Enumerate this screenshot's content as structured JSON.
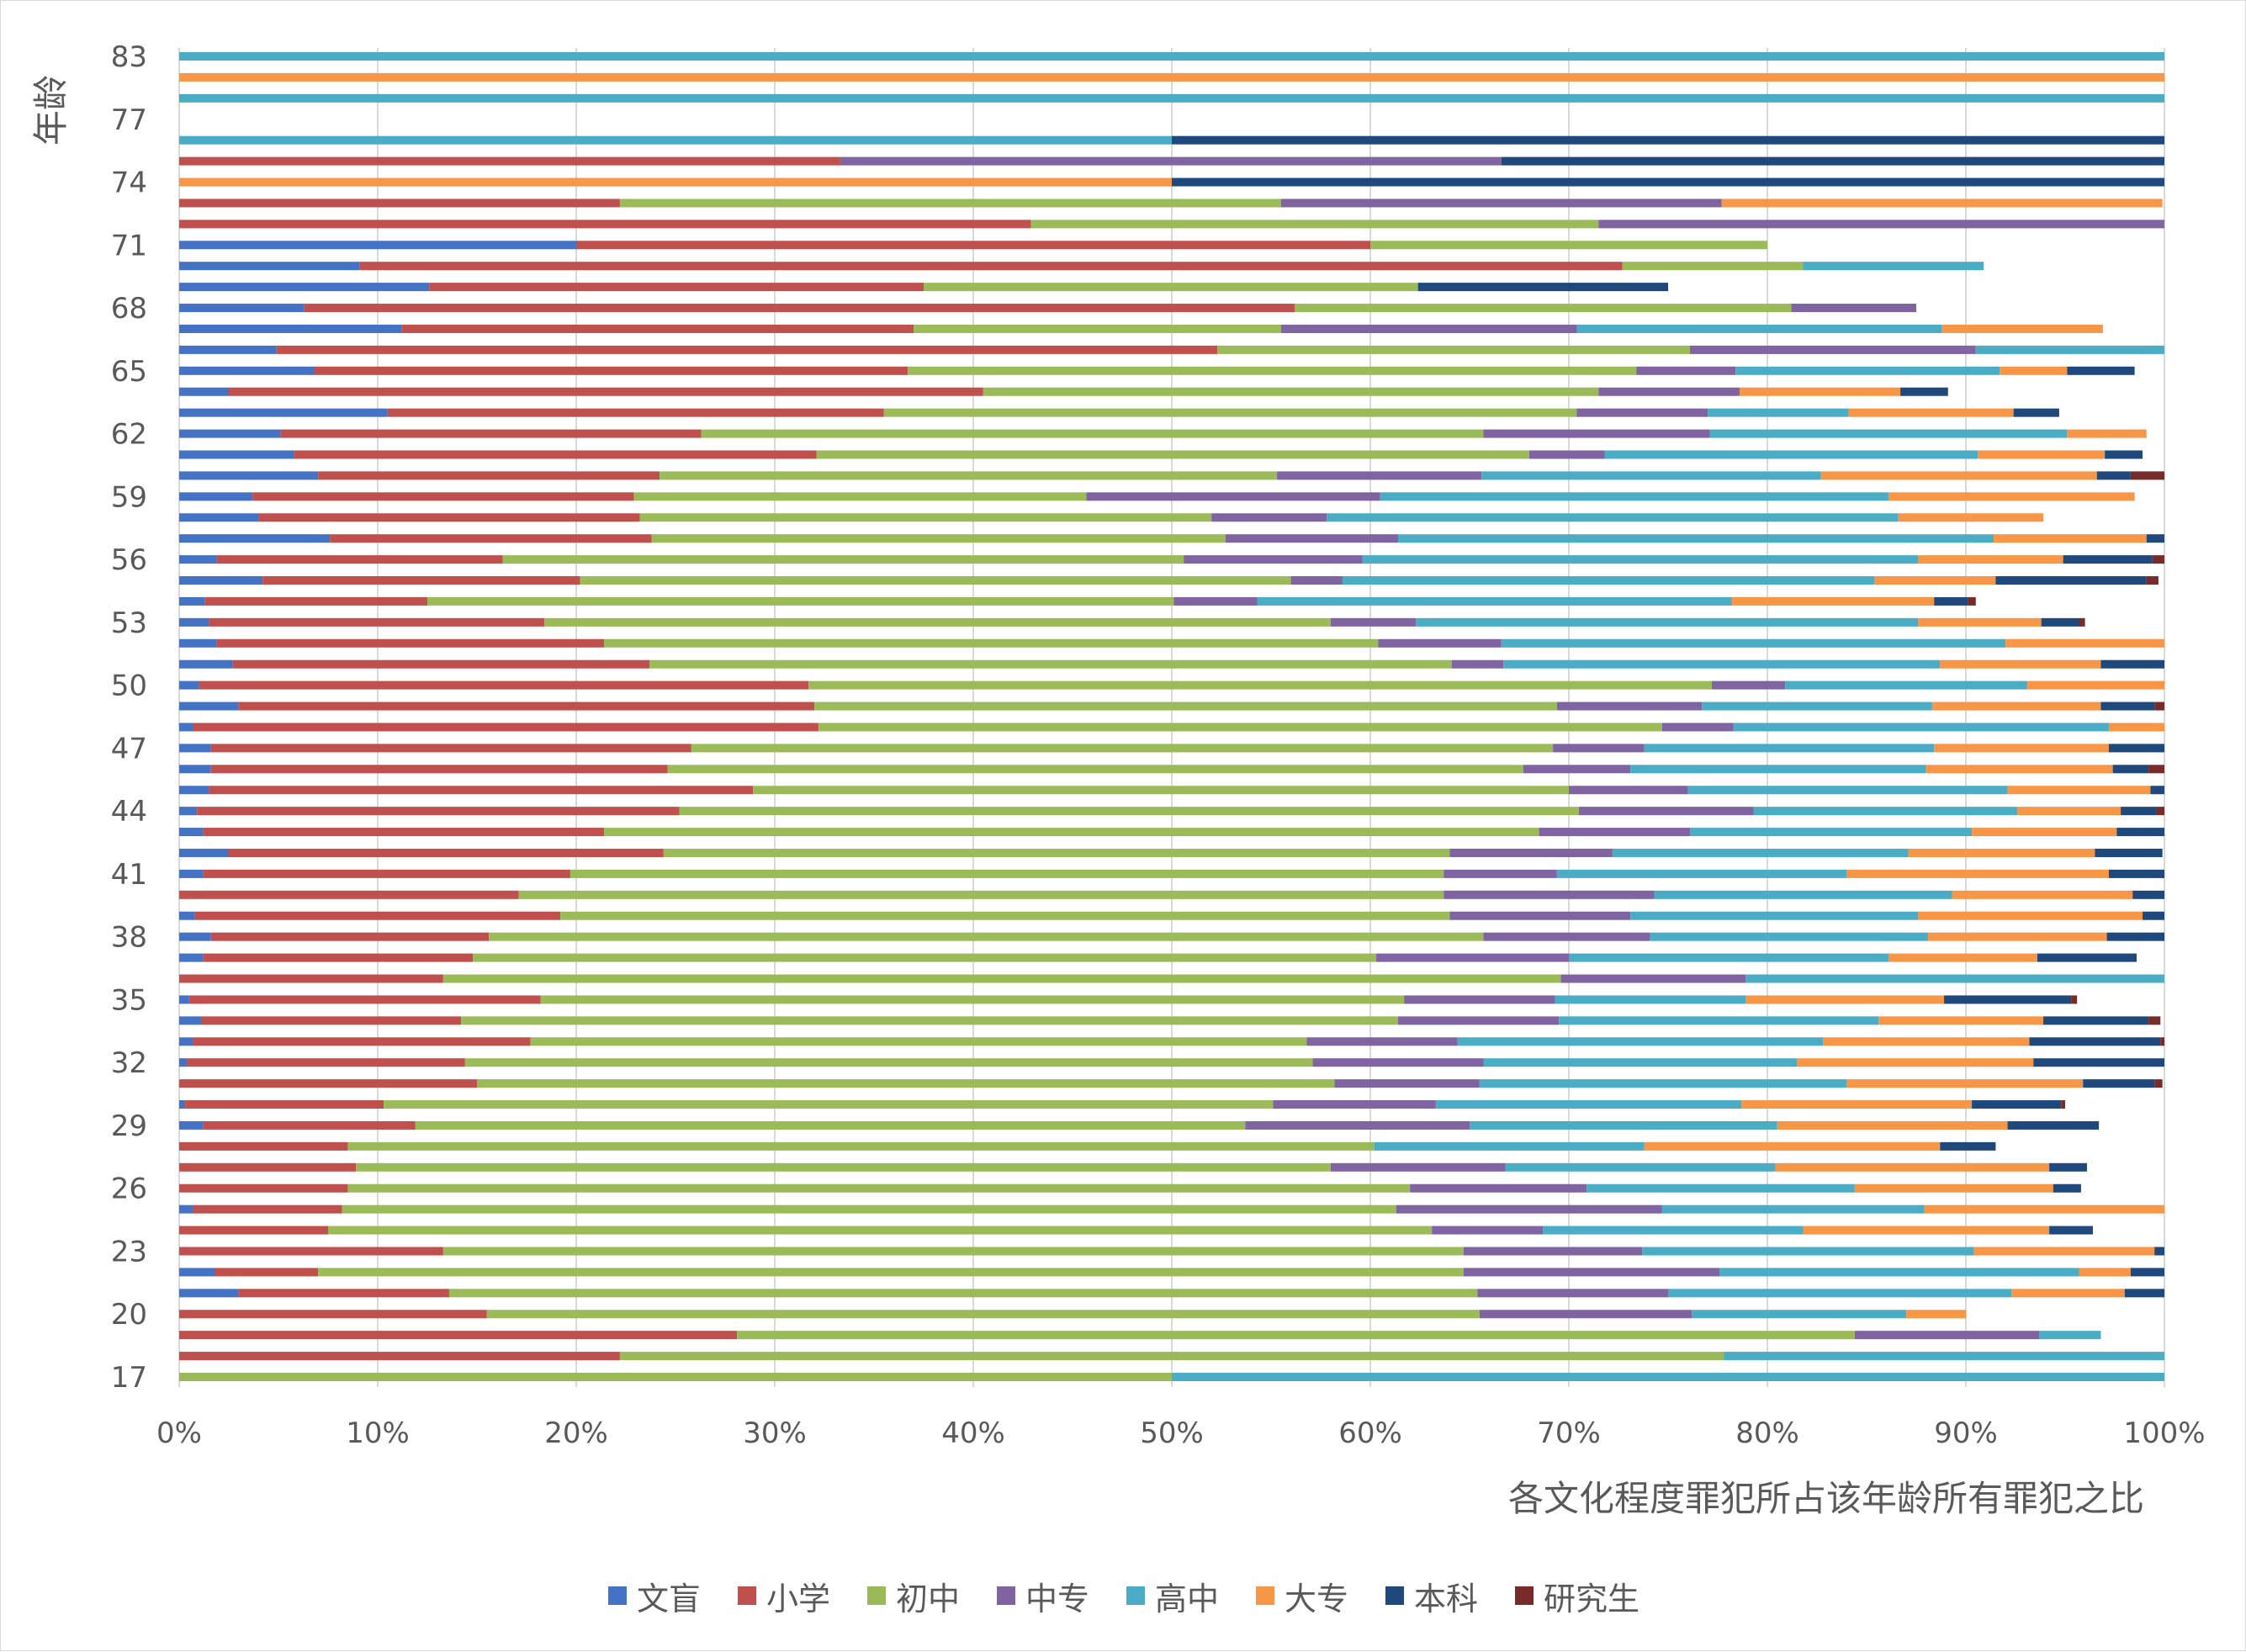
{
  "chart_data": {
    "type": "bar",
    "orientation": "horizontal",
    "stacked": "percent",
    "xlabel": "各文化程度罪犯所占该年龄所有罪犯之比",
    "ylabel": "年龄",
    "xlim": [
      0,
      100
    ],
    "xticks": [
      "0%",
      "10%",
      "20%",
      "30%",
      "40%",
      "50%",
      "60%",
      "70%",
      "80%",
      "90%",
      "100%"
    ],
    "ytick_labels": [
      "17",
      "20",
      "23",
      "26",
      "29",
      "32",
      "35",
      "38",
      "41",
      "44",
      "47",
      "50",
      "53",
      "56",
      "59",
      "62",
      "65",
      "68",
      "71",
      "74",
      "77",
      "83"
    ],
    "grid": "vertical",
    "legend_position": "bottom",
    "categories": [
      "17",
      "18",
      "19",
      "20",
      "21",
      "22",
      "23",
      "24",
      "25",
      "26",
      "27",
      "28",
      "29",
      "30",
      "31",
      "32",
      "33",
      "34",
      "35",
      "36",
      "37",
      "38",
      "39",
      "40",
      "41",
      "42",
      "43",
      "44",
      "45",
      "46",
      "47",
      "48",
      "49",
      "50",
      "51",
      "52",
      "53",
      "54",
      "55",
      "56",
      "57",
      "58",
      "59",
      "60",
      "61",
      "62",
      "63",
      "64",
      "65",
      "66",
      "67",
      "68",
      "69",
      "70",
      "71",
      "72",
      "73",
      "74",
      "75",
      "76",
      "77",
      "78",
      "79",
      "83"
    ],
    "series": [
      {
        "name": "文盲",
        "color": "#4472c4",
        "values": [
          0,
          0,
          0,
          0,
          3,
          1.8,
          0,
          0,
          0.7,
          0,
          0,
          0,
          1.2,
          0.3,
          0,
          0.4,
          0.7,
          1.1,
          0.5,
          0,
          1.2,
          1.6,
          0.8,
          0,
          1.2,
          2.5,
          1.2,
          0.9,
          1.5,
          1.6,
          1.6,
          0.7,
          3,
          1,
          2.7,
          1.9,
          1.5,
          1.3,
          4.2,
          1.9,
          7.6,
          4,
          3.7,
          7,
          5.8,
          5.1,
          10.5,
          2.5,
          6.8,
          4.9,
          11.2,
          6.3,
          12.6,
          9.1,
          20,
          0,
          0,
          0,
          0,
          0,
          0,
          0,
          0,
          0
        ]
      },
      {
        "name": "小学",
        "color": "#c0504d",
        "values": [
          0,
          22.2,
          28.1,
          15.5,
          10.6,
          5.2,
          13.3,
          7.5,
          7.5,
          8.5,
          8.9,
          8.5,
          10.7,
          10,
          15,
          14,
          17,
          13.1,
          17.7,
          13.3,
          13.6,
          14,
          18.4,
          17.1,
          18.5,
          21.9,
          20.2,
          24.3,
          27.4,
          23,
          24.2,
          31.5,
          29,
          30.7,
          21,
          19.5,
          16.9,
          11.2,
          16,
          14.4,
          16.2,
          19.2,
          19.2,
          17.2,
          26.3,
          21.2,
          25,
          38,
          29.9,
          47.4,
          25.8,
          49.9,
          24.9,
          63.6,
          40,
          42.9,
          22.2,
          0,
          33.3,
          0,
          0,
          0,
          0,
          0
        ]
      },
      {
        "name": "初中",
        "color": "#9bbb59",
        "values": [
          50,
          55.6,
          56.3,
          50,
          51.8,
          57.7,
          51.4,
          55.6,
          53.1,
          53.5,
          49.1,
          51.7,
          41.8,
          44.8,
          43.2,
          42.7,
          39.1,
          47.2,
          43.5,
          56.3,
          45.5,
          50.1,
          44.8,
          46.6,
          44,
          39.6,
          47.1,
          45.3,
          41.1,
          43.1,
          43.4,
          42.5,
          37.4,
          45.5,
          40.4,
          39,
          39.6,
          37.6,
          35.8,
          34.3,
          28.9,
          28.8,
          22.8,
          31.1,
          35.9,
          39.4,
          34.9,
          31,
          36.7,
          23.8,
          18.5,
          25,
          24.9,
          9.1,
          20,
          28.6,
          33.3,
          0,
          0,
          0,
          0,
          0,
          0,
          0
        ]
      },
      {
        "name": "中专",
        "color": "#8064a2",
        "values": [
          0,
          0,
          9.3,
          10.7,
          9.6,
          12.9,
          9,
          5.6,
          13.4,
          8.9,
          8.8,
          0,
          11.3,
          8.2,
          7.3,
          8.6,
          7.6,
          8.1,
          7.6,
          9.3,
          9.7,
          8.4,
          9.1,
          10.6,
          5.7,
          8.2,
          7.6,
          8.8,
          6,
          5.4,
          4.6,
          3.6,
          7.3,
          3.7,
          2.6,
          6.2,
          4.3,
          4.2,
          2.6,
          9,
          8.7,
          5.8,
          14.8,
          10.3,
          3.8,
          11.4,
          6.6,
          7.1,
          5,
          14.4,
          14.9,
          6.3,
          0,
          0,
          0,
          28.6,
          22.2,
          0,
          33.3,
          0,
          0,
          0,
          0,
          0
        ]
      },
      {
        "name": "高中",
        "color": "#4bacc6",
        "values": [
          50,
          22.2,
          3.1,
          10.8,
          17.3,
          18.1,
          16.7,
          13.1,
          13.2,
          13.5,
          13.6,
          13.6,
          15.5,
          15.4,
          18.5,
          15.8,
          18.4,
          16.1,
          9.6,
          21.2,
          16.1,
          14,
          14.5,
          15,
          14.6,
          14.9,
          14.2,
          13.3,
          16.1,
          14.9,
          14.6,
          18.9,
          11.6,
          12.2,
          22,
          25.4,
          25.3,
          23.9,
          26.8,
          28,
          30,
          28.8,
          25.6,
          17.1,
          18.8,
          18,
          7.1,
          0,
          13.3,
          9.7,
          18.4,
          0,
          0,
          9.1,
          0,
          0,
          0,
          0,
          0,
          50,
          0,
          100,
          0,
          100
        ]
      },
      {
        "name": "大专",
        "color": "#f79646",
        "values": [
          0,
          0,
          0,
          3,
          5.7,
          2.6,
          9.1,
          12.4,
          12.6,
          10,
          13.8,
          14.9,
          11.6,
          11.6,
          11.9,
          11.9,
          10.4,
          8.3,
          10,
          4.7,
          7.5,
          9,
          11.3,
          9.1,
          13.2,
          9.4,
          7.3,
          5.2,
          7.2,
          9.4,
          8.8,
          5.8,
          8.5,
          7.4,
          8.1,
          11.8,
          6.2,
          10.2,
          6.1,
          7.3,
          7.7,
          7.3,
          12.4,
          13.9,
          6.4,
          4,
          8.3,
          8.1,
          3.4,
          4.8,
          8.1,
          0,
          0,
          0,
          0,
          0,
          22.2,
          50,
          0,
          0,
          0,
          0,
          100,
          0
        ]
      },
      {
        "name": "本科",
        "color": "#1f497d",
        "values": [
          0,
          0,
          0,
          0,
          2,
          2,
          1.4,
          2.2,
          1.8,
          1.4,
          1.9,
          2.8,
          4.6,
          4.5,
          3.6,
          7,
          6.6,
          5.3,
          6.4,
          3.6,
          5,
          3.4,
          2.9,
          2.1,
          2.8,
          3.4,
          2.7,
          1.8,
          0.7,
          1.8,
          3,
          1.7,
          2.7,
          2.7,
          3.5,
          1.8,
          1.9,
          1.7,
          7.6,
          4.5,
          1.3,
          0,
          0,
          1.7,
          1.9,
          0,
          2.3,
          2.4,
          3.4,
          0,
          0,
          0,
          12.6,
          0,
          0,
          0,
          0,
          50,
          33.4,
          50,
          0,
          0,
          0,
          0
        ]
      },
      {
        "name": "研究生",
        "color": "#772c2a",
        "values": [
          0,
          0,
          0,
          0,
          0,
          0,
          0,
          0,
          0,
          0,
          0,
          0,
          0,
          0.2,
          0.4,
          0.2,
          0.2,
          0.6,
          0.3,
          0.5,
          0,
          0.8,
          0,
          0.5,
          0,
          0,
          0,
          0.5,
          0.5,
          0.9,
          0,
          0.3,
          0.5,
          0,
          0.3,
          0.5,
          0.3,
          0.4,
          0.6,
          0.7,
          0,
          0,
          0,
          1.7,
          0,
          0,
          0,
          0,
          0,
          0,
          0,
          0,
          0,
          0,
          0,
          0,
          0,
          0,
          0,
          0,
          0,
          0,
          0,
          0
        ]
      }
    ]
  }
}
